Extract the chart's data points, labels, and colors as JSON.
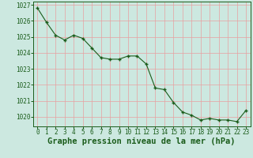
{
  "x": [
    0,
    1,
    2,
    3,
    4,
    5,
    6,
    7,
    8,
    9,
    10,
    11,
    12,
    13,
    14,
    15,
    16,
    17,
    18,
    19,
    20,
    21,
    22,
    23
  ],
  "y": [
    1026.8,
    1025.9,
    1025.1,
    1024.8,
    1025.1,
    1024.9,
    1024.3,
    1023.7,
    1023.6,
    1023.6,
    1023.8,
    1023.8,
    1023.3,
    1021.8,
    1021.7,
    1020.9,
    1020.3,
    1020.1,
    1019.8,
    1019.9,
    1019.8,
    1019.8,
    1019.7,
    1020.4
  ],
  "ylim_min": 1019.4,
  "ylim_max": 1027.2,
  "yticks": [
    1020,
    1021,
    1022,
    1023,
    1024,
    1025,
    1026,
    1027
  ],
  "xticks": [
    0,
    1,
    2,
    3,
    4,
    5,
    6,
    7,
    8,
    9,
    10,
    11,
    12,
    13,
    14,
    15,
    16,
    17,
    18,
    19,
    20,
    21,
    22,
    23
  ],
  "xlabel": "Graphe pression niveau de la mer (hPa)",
  "line_color": "#1a5c1a",
  "marker": "+",
  "bg_color": "#cce8e0",
  "grid_color_v": "#e8a0a0",
  "grid_color_h": "#e8a0a0",
  "tick_fontsize": 5.5,
  "xlabel_fontsize": 7.5,
  "xlabel_color": "#1a5c1a",
  "marker_size": 3.5,
  "marker_edge_width": 1.0,
  "line_width": 0.8
}
